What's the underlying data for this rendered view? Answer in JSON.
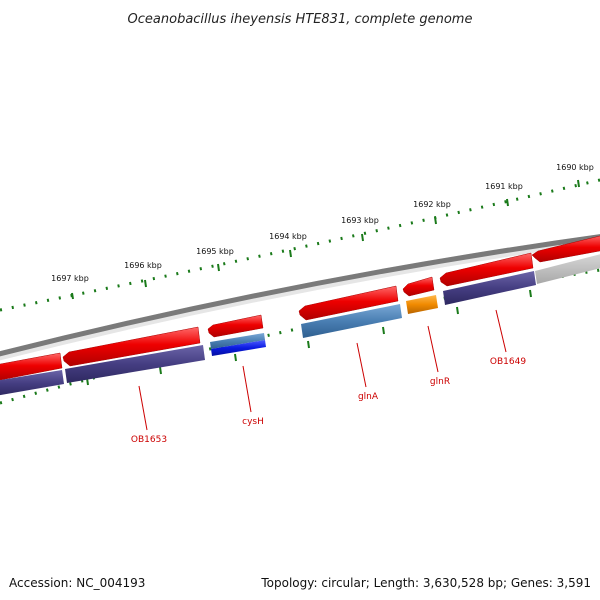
{
  "title": "Oceanobacillus iheyensis HTE831, complete genome",
  "footer": {
    "accession": "Accession: NC_004193",
    "topology": "Topology: circular; Length: 3,630,528 bp; Genes: 3,591"
  },
  "ruler": {
    "labels": [
      "1690 kbp",
      "1691 kbp",
      "1692 kbp",
      "1693 kbp",
      "1694 kbp",
      "1695 kbp",
      "1696 kbp",
      "1697 kbp"
    ],
    "tick_color": "#1a7a1a"
  },
  "backbone_colors": {
    "outer": "#777777",
    "inner_grey": "#bbbbbb"
  },
  "features": [
    {
      "name": "OB1649",
      "strand": "forward",
      "color": "#ee0000"
    },
    {
      "name": "glnR",
      "strand": "forward",
      "color": "#ee0000"
    },
    {
      "name": "glnA",
      "strand": "forward",
      "color": "#ee0000"
    },
    {
      "name": "cysH",
      "strand": "forward",
      "color": "#ee0000"
    },
    {
      "name": "OB1653",
      "strand": "forward",
      "color": "#ee0000"
    }
  ],
  "gene_labels": [
    "OB1649",
    "glnR",
    "glnA",
    "cysH",
    "OB1653"
  ],
  "colors": {
    "cds": "#ee0000",
    "track_purple": "#453e82",
    "track_steelblue": "#4a7fb3",
    "track_blue": "#0a1ae0",
    "track_orange": "#f08a00",
    "label": "#cc0000"
  }
}
